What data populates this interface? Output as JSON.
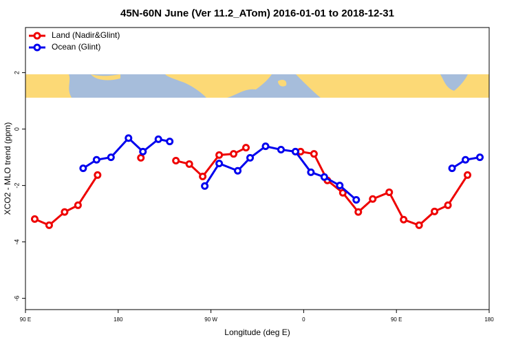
{
  "chart_data": {
    "type": "line",
    "title": "45N-60N June (Ver 11.2_ATom)   2016-01-01 to 2018-12-31",
    "x_label": "Longitude (deg E)",
    "y_label": "XCO2 - MLO trend (ppm)",
    "xlim": [
      90,
      540
    ],
    "ylim": [
      -6.4,
      3.6
    ],
    "xticks": [
      {
        "value": 90,
        "label": "90 E"
      },
      180,
      {
        "value": 270,
        "label": "90 W"
      },
      {
        "value": 360,
        "label": "0"
      },
      {
        "value": 450,
        "label": "90 E"
      },
      {
        "value": 540,
        "label": "180"
      }
    ],
    "yticks": [
      -6,
      -4,
      -2,
      0,
      2
    ],
    "legend": "top-left",
    "series": [
      {
        "name": "Land (Nadir&Glint)",
        "color": "#ee0000",
        "x": [
          99,
          113,
          128,
          141,
          160,
          null,
          202,
          null,
          236,
          249,
          262,
          278,
          292,
          304,
          null,
          357,
          370,
          383,
          398,
          413,
          427,
          443,
          457,
          472,
          487,
          500,
          519
        ],
        "values": [
          -3.19,
          -3.41,
          -2.94,
          -2.7,
          -1.63,
          null,
          -1.02,
          null,
          -1.12,
          -1.24,
          -1.68,
          -0.92,
          -0.88,
          -0.66,
          null,
          -0.8,
          -0.88,
          -1.82,
          -2.26,
          -2.94,
          -2.48,
          -2.24,
          -3.21,
          -3.41,
          -2.92,
          -2.7,
          -1.63
        ]
      },
      {
        "name": "Ocean (Glint)",
        "color": "#0000ee",
        "x": [
          146,
          159,
          173,
          190,
          204,
          219,
          230,
          null,
          264,
          278,
          296,
          308,
          323,
          338,
          352,
          367,
          380,
          395,
          411,
          null,
          504,
          517,
          531
        ],
        "values": [
          -1.39,
          -1.09,
          -1.0,
          -0.32,
          -0.8,
          -0.36,
          -0.44,
          null,
          -2.02,
          -1.22,
          -1.48,
          -1.02,
          -0.61,
          -0.73,
          -0.8,
          -1.53,
          -1.7,
          -2.0,
          -2.51,
          null,
          -1.39,
          -1.09,
          -1.0
        ]
      }
    ]
  }
}
